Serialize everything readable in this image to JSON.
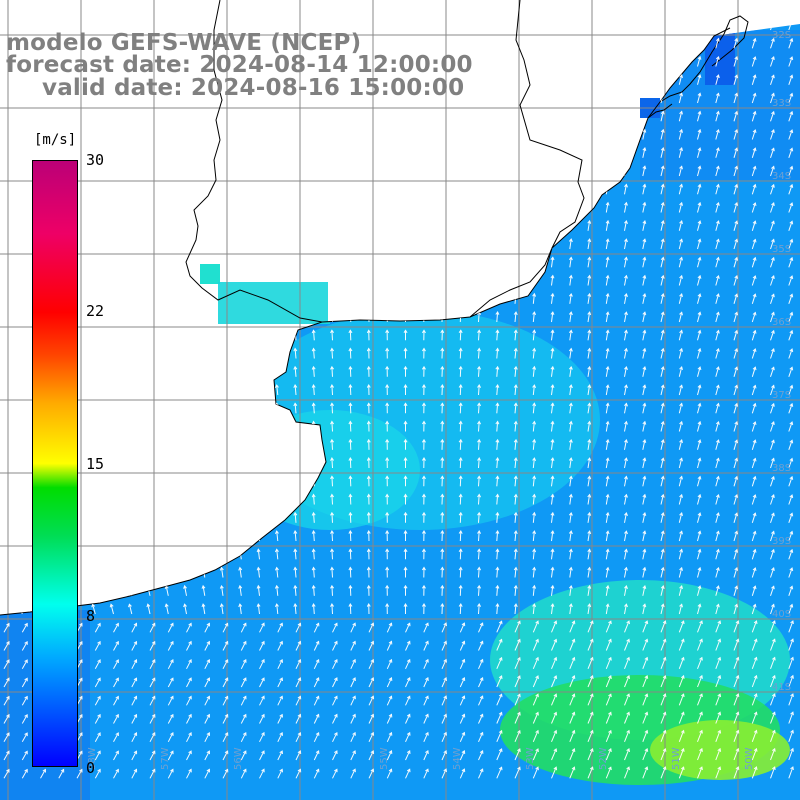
{
  "title": {
    "line1": "modelo GEFS-WAVE (NCEP)",
    "line2": "forecast date: 2024-08-14 12:00:00",
    "line3": "valid date: 2024-08-16 15:00:00"
  },
  "colorbar": {
    "unit": "[m/s]",
    "ticks": [
      "30",
      "22",
      "15",
      "8",
      "0"
    ],
    "min": 0,
    "max": 30,
    "colors": [
      "#0000ff",
      "#00aaff",
      "#00ffee",
      "#00dd00",
      "#ffff00",
      "#ff8800",
      "#ff0000",
      "#bb0077"
    ]
  },
  "map": {
    "variable": "wind speed and direction",
    "lat_labels": [
      "32S",
      "33S",
      "34S",
      "35S",
      "36S",
      "37S",
      "38S",
      "39S",
      "40S",
      "41S"
    ],
    "lon_labels": [
      "58W",
      "57W",
      "56W",
      "55W",
      "54W",
      "53W",
      "52W",
      "51W",
      "50W"
    ],
    "land_color": "#ffffff",
    "grid_color": "#888888"
  }
}
